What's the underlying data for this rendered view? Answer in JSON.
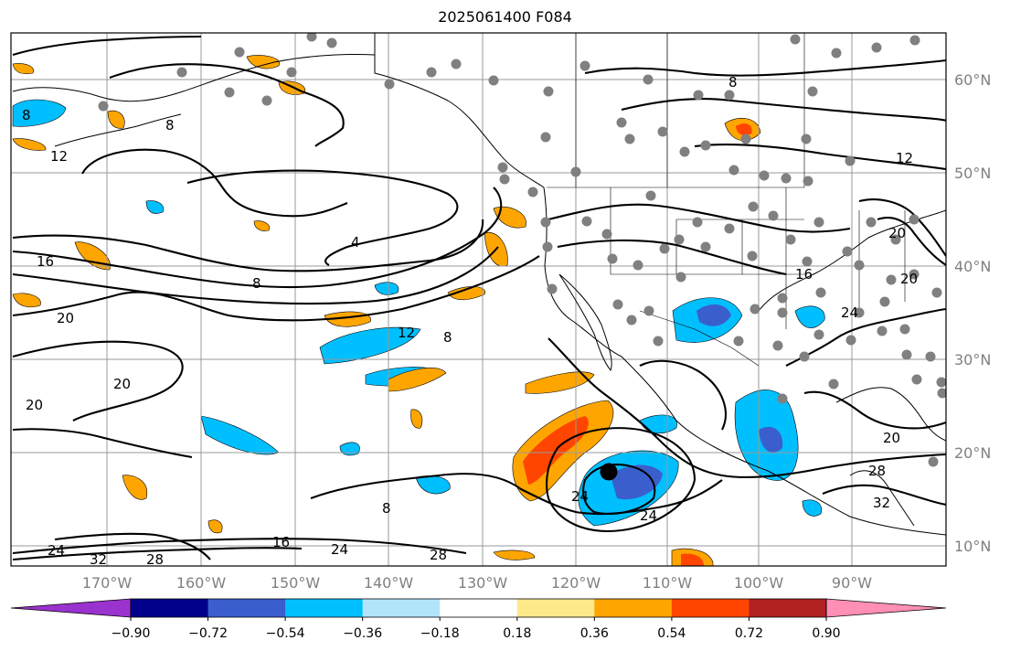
{
  "title": "2025061400 F084",
  "map": {
    "lon_ticks": [
      "170°W",
      "160°W",
      "150°W",
      "140°W",
      "130°W",
      "120°W",
      "110°W",
      "100°W",
      "90°W"
    ],
    "lat_ticks": [
      "60°N",
      "50°N",
      "40°N",
      "30°N",
      "20°N",
      "10°N"
    ],
    "contour_labels": [
      "8",
      "8",
      "12",
      "12",
      "8",
      "4",
      "16",
      "8",
      "20",
      "12",
      "8",
      "20",
      "20",
      "20",
      "24",
      "24",
      "16",
      "24",
      "28",
      "32",
      "28",
      "24",
      "20",
      "28",
      "32",
      "16",
      "20",
      "24",
      "8"
    ]
  },
  "colorbar": {
    "labels": [
      "−0.90",
      "−0.72",
      "−0.54",
      "−0.36",
      "−0.18",
      "0.18",
      "0.36",
      "0.54",
      "0.72",
      "0.90"
    ],
    "colors": [
      "#9a32cd",
      "#00008b",
      "#3a5fcd",
      "#00bfff",
      "#b2e5fc",
      "#ffffff",
      "#fde88a",
      "#ffa500",
      "#ff4500",
      "#b22222",
      "#ff8fb4"
    ]
  }
}
